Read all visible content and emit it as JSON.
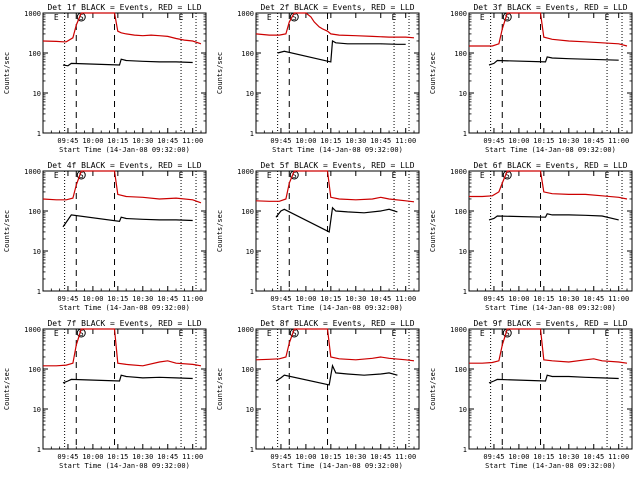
{
  "chart_data": [
    {
      "type": "line",
      "title": "Det 1f BLACK = Events, RED = LLD",
      "ylabel": "Counts/sec",
      "xlabel": "Start Time (14-Jan-08 09:32:00)",
      "yscale": "log",
      "ylim": [
        1,
        1000
      ],
      "yticks": [
        "1",
        "10",
        "100",
        "1000"
      ],
      "xticks": [
        "09:45",
        "10:00",
        "10:15",
        "10:30",
        "10:45",
        "11:00"
      ],
      "markers": [
        "E",
        "S",
        "E"
      ],
      "series": [
        {
          "color": "#cc0000",
          "x": [
            "09:30",
            "09:38",
            "09:42",
            "09:44",
            "09:48",
            "09:50",
            "09:53",
            "09:55",
            "10:12",
            "10:13",
            "10:15",
            "10:17",
            "10:20",
            "10:25",
            "10:30",
            "10:35",
            "10:40",
            "10:45",
            "10:50",
            "10:55",
            "11:00",
            "11:05"
          ],
          "y": [
            200,
            195,
            190,
            190,
            240,
            500,
            1000,
            1000,
            1000,
            1000,
            350,
            320,
            300,
            280,
            270,
            280,
            270,
            260,
            230,
            210,
            200,
            170
          ]
        },
        {
          "color": "#000000",
          "x": [
            "09:42",
            "09:45",
            "09:47",
            "10:16",
            "10:17",
            "10:20",
            "10:30",
            "10:40",
            "10:50",
            "11:00"
          ],
          "y": [
            50,
            48,
            55,
            50,
            70,
            65,
            62,
            60,
            60,
            58
          ]
        }
      ]
    },
    {
      "type": "line",
      "title": "Det 2f BLACK = Events, RED = LLD",
      "ylabel": "Counts/sec",
      "xlabel": "Start Time (14-Jan-08 09:32:00)",
      "yscale": "log",
      "ylim": [
        1,
        1000
      ],
      "yticks": [
        "1",
        "10",
        "100",
        "1000"
      ],
      "xticks": [
        "09:45",
        "10:00",
        "10:15",
        "10:30",
        "10:45",
        "11:00"
      ],
      "markers": [
        "E",
        "S",
        "E"
      ],
      "series": [
        {
          "color": "#cc0000",
          "x": [
            "09:30",
            "09:38",
            "09:44",
            "09:48",
            "09:50",
            "09:53",
            "09:55",
            "10:00",
            "10:03",
            "10:05",
            "10:08",
            "10:10",
            "10:13",
            "10:15",
            "10:20",
            "10:30",
            "10:40",
            "10:50",
            "11:00",
            "11:05"
          ],
          "y": [
            300,
            280,
            280,
            300,
            600,
            1000,
            1000,
            1000,
            800,
            600,
            450,
            400,
            350,
            300,
            280,
            270,
            260,
            250,
            250,
            240
          ]
        },
        {
          "color": "#000000",
          "x": [
            "09:43",
            "09:47",
            "10:15",
            "10:16",
            "10:18",
            "10:25",
            "10:35",
            "10:45",
            "10:55",
            "11:00"
          ],
          "y": [
            100,
            110,
            60,
            200,
            180,
            170,
            170,
            170,
            165,
            165
          ]
        }
      ]
    },
    {
      "type": "line",
      "title": "Det 3f BLACK = Events, RED = LLD",
      "ylabel": "Counts/sec",
      "xlabel": "Start Time (14-Jan-08 09:32:00)",
      "yscale": "log",
      "ylim": [
        1,
        1000
      ],
      "yticks": [
        "1",
        "10",
        "100",
        "1000"
      ],
      "xticks": [
        "09:45",
        "10:00",
        "10:15",
        "10:30",
        "10:45",
        "11:00"
      ],
      "markers": [
        "E",
        "S",
        "E"
      ],
      "series": [
        {
          "color": "#cc0000",
          "x": [
            "09:30",
            "09:38",
            "09:44",
            "09:48",
            "09:50",
            "09:53",
            "09:55",
            "10:12",
            "10:13",
            "10:15",
            "10:20",
            "10:30",
            "10:40",
            "10:50",
            "11:00",
            "11:05"
          ],
          "y": [
            150,
            150,
            150,
            170,
            400,
            1000,
            1000,
            1000,
            1000,
            250,
            220,
            200,
            190,
            180,
            170,
            150
          ]
        },
        {
          "color": "#000000",
          "x": [
            "09:42",
            "09:45",
            "09:47",
            "10:16",
            "10:17",
            "10:20",
            "10:30",
            "10:40",
            "10:50",
            "11:00"
          ],
          "y": [
            50,
            55,
            65,
            60,
            80,
            75,
            72,
            70,
            68,
            66
          ]
        }
      ]
    },
    {
      "type": "line",
      "title": "Det 4f BLACK = Events, RED = LLD",
      "ylabel": "Counts/sec",
      "xlabel": "Start Time (14-Jan-08 09:32:00)",
      "yscale": "log",
      "ylim": [
        1,
        1000
      ],
      "yticks": [
        "1",
        "10",
        "100",
        "1000"
      ],
      "xticks": [
        "09:45",
        "10:00",
        "10:15",
        "10:30",
        "10:45",
        "11:00"
      ],
      "markers": [
        "E",
        "S",
        "E"
      ],
      "series": [
        {
          "color": "#cc0000",
          "x": [
            "09:30",
            "09:38",
            "09:44",
            "09:48",
            "09:50",
            "09:53",
            "09:55",
            "10:12",
            "10:13",
            "10:15",
            "10:20",
            "10:30",
            "10:40",
            "10:50",
            "11:00",
            "11:05"
          ],
          "y": [
            200,
            190,
            190,
            210,
            450,
            1000,
            1000,
            1000,
            1000,
            260,
            230,
            220,
            200,
            210,
            190,
            160
          ]
        },
        {
          "color": "#000000",
          "x": [
            "09:42",
            "09:45",
            "09:47",
            "10:16",
            "10:17",
            "10:20",
            "10:30",
            "10:40",
            "10:50",
            "11:00"
          ],
          "y": [
            40,
            60,
            80,
            55,
            70,
            65,
            62,
            60,
            60,
            58
          ]
        }
      ]
    },
    {
      "type": "line",
      "title": "Det 5f BLACK = Events, RED = LLD",
      "ylabel": "Counts/sec",
      "xlabel": "Start Time (14-Jan-08 09:32:00)",
      "yscale": "log",
      "ylim": [
        1,
        1000
      ],
      "yticks": [
        "1",
        "10",
        "100",
        "1000"
      ],
      "xticks": [
        "09:45",
        "10:00",
        "10:15",
        "10:30",
        "10:45",
        "11:00"
      ],
      "markers": [
        "E",
        "S",
        "E"
      ],
      "series": [
        {
          "color": "#cc0000",
          "x": [
            "09:30",
            "09:38",
            "09:44",
            "09:48",
            "09:50",
            "09:53",
            "09:55",
            "10:12",
            "10:13",
            "10:15",
            "10:20",
            "10:30",
            "10:40",
            "10:45",
            "10:50",
            "11:00",
            "11:05"
          ],
          "y": [
            180,
            175,
            175,
            200,
            500,
            1000,
            1000,
            1000,
            1000,
            220,
            200,
            190,
            200,
            220,
            200,
            180,
            170
          ]
        },
        {
          "color": "#000000",
          "x": [
            "09:42",
            "09:45",
            "09:47",
            "10:14",
            "10:16",
            "10:18",
            "10:25",
            "10:35",
            "10:45",
            "10:50",
            "10:55"
          ],
          "y": [
            70,
            100,
            110,
            30,
            120,
            100,
            95,
            90,
            100,
            110,
            95
          ]
        }
      ]
    },
    {
      "type": "line",
      "title": "Det 6f BLACK = Events, RED = LLD",
      "ylabel": "Counts/sec",
      "xlabel": "Start Time (14-Jan-08 09:32:00)",
      "yscale": "log",
      "ylim": [
        1,
        1000
      ],
      "yticks": [
        "1",
        "10",
        "100",
        "1000"
      ],
      "xticks": [
        "09:45",
        "10:00",
        "10:15",
        "10:30",
        "10:45",
        "11:00"
      ],
      "markers": [
        "E",
        "S",
        "E"
      ],
      "series": [
        {
          "color": "#cc0000",
          "x": [
            "09:30",
            "09:38",
            "09:44",
            "09:48",
            "09:50",
            "09:53",
            "09:55",
            "10:12",
            "10:13",
            "10:15",
            "10:20",
            "10:30",
            "10:40",
            "10:50",
            "11:00",
            "11:05"
          ],
          "y": [
            230,
            230,
            240,
            300,
            500,
            1000,
            1000,
            1000,
            1000,
            300,
            270,
            260,
            260,
            240,
            220,
            200
          ]
        },
        {
          "color": "#000000",
          "x": [
            "09:42",
            "09:45",
            "09:47",
            "10:16",
            "10:17",
            "10:20",
            "10:30",
            "10:40",
            "10:50",
            "11:00"
          ],
          "y": [
            60,
            65,
            75,
            70,
            85,
            80,
            80,
            78,
            75,
            60
          ]
        }
      ]
    },
    {
      "type": "line",
      "title": "Det 7f BLACK = Events, RED = LLD",
      "ylabel": "Counts/sec",
      "xlabel": "Start Time (14-Jan-08 09:32:00)",
      "yscale": "log",
      "ylim": [
        1,
        1000
      ],
      "yticks": [
        "1",
        "10",
        "100",
        "1000"
      ],
      "xticks": [
        "09:45",
        "10:00",
        "10:15",
        "10:30",
        "10:45",
        "11:00"
      ],
      "markers": [
        "E",
        "S",
        "E"
      ],
      "series": [
        {
          "color": "#cc0000",
          "x": [
            "09:30",
            "09:38",
            "09:44",
            "09:48",
            "09:50",
            "09:53",
            "09:55",
            "10:12",
            "10:13",
            "10:15",
            "10:20",
            "10:30",
            "10:40",
            "10:45",
            "10:50",
            "11:00",
            "11:05"
          ],
          "y": [
            120,
            120,
            125,
            140,
            400,
            1000,
            1000,
            1000,
            1000,
            140,
            130,
            120,
            150,
            160,
            140,
            130,
            120
          ]
        },
        {
          "color": "#000000",
          "x": [
            "09:42",
            "09:45",
            "09:47",
            "10:16",
            "10:17",
            "10:20",
            "10:30",
            "10:40",
            "10:50",
            "11:00"
          ],
          "y": [
            45,
            50,
            55,
            50,
            70,
            65,
            60,
            62,
            60,
            58
          ]
        }
      ]
    },
    {
      "type": "line",
      "title": "Det 8f BLACK = Events, RED = LLD",
      "ylabel": "Counts/sec",
      "xlabel": "Start Time (14-Jan-08 09:32:00)",
      "yscale": "log",
      "ylim": [
        1,
        1000
      ],
      "yticks": [
        "1",
        "10",
        "100",
        "1000"
      ],
      "xticks": [
        "09:45",
        "10:00",
        "10:15",
        "10:30",
        "10:45",
        "11:00"
      ],
      "markers": [
        "E",
        "S",
        "E"
      ],
      "series": [
        {
          "color": "#cc0000",
          "x": [
            "09:30",
            "09:38",
            "09:44",
            "09:48",
            "09:50",
            "09:53",
            "09:55",
            "10:12",
            "10:13",
            "10:15",
            "10:20",
            "10:30",
            "10:40",
            "10:45",
            "10:50",
            "11:00",
            "11:05"
          ],
          "y": [
            170,
            175,
            180,
            200,
            450,
            1000,
            1000,
            1000,
            1000,
            200,
            180,
            170,
            185,
            200,
            185,
            170,
            160
          ]
        },
        {
          "color": "#000000",
          "x": [
            "09:42",
            "09:45",
            "09:47",
            "10:14",
            "10:16",
            "10:18",
            "10:25",
            "10:35",
            "10:45",
            "10:50",
            "10:55"
          ],
          "y": [
            50,
            60,
            70,
            40,
            120,
            80,
            75,
            70,
            75,
            80,
            70
          ]
        }
      ]
    },
    {
      "type": "line",
      "title": "Det 9f BLACK = Events, RED = LLD",
      "ylabel": "Counts/sec",
      "xlabel": "Start Time (14-Jan-08 09:32:00)",
      "yscale": "log",
      "ylim": [
        1,
        1000
      ],
      "yticks": [
        "1",
        "10",
        "100",
        "1000"
      ],
      "xticks": [
        "09:45",
        "10:00",
        "10:15",
        "10:30",
        "10:45",
        "11:00"
      ],
      "markers": [
        "E",
        "S",
        "E"
      ],
      "series": [
        {
          "color": "#cc0000",
          "x": [
            "09:30",
            "09:38",
            "09:44",
            "09:48",
            "09:50",
            "09:53",
            "09:55",
            "10:12",
            "10:13",
            "10:15",
            "10:20",
            "10:30",
            "10:40",
            "10:45",
            "10:50",
            "11:00",
            "11:05"
          ],
          "y": [
            140,
            140,
            145,
            160,
            400,
            1000,
            1000,
            1000,
            1000,
            170,
            160,
            150,
            170,
            180,
            160,
            150,
            140
          ]
        },
        {
          "color": "#000000",
          "x": [
            "09:42",
            "09:45",
            "09:47",
            "10:16",
            "10:17",
            "10:20",
            "10:30",
            "10:40",
            "10:50",
            "11:00"
          ],
          "y": [
            45,
            50,
            55,
            50,
            70,
            65,
            65,
            62,
            60,
            58
          ]
        }
      ]
    }
  ]
}
